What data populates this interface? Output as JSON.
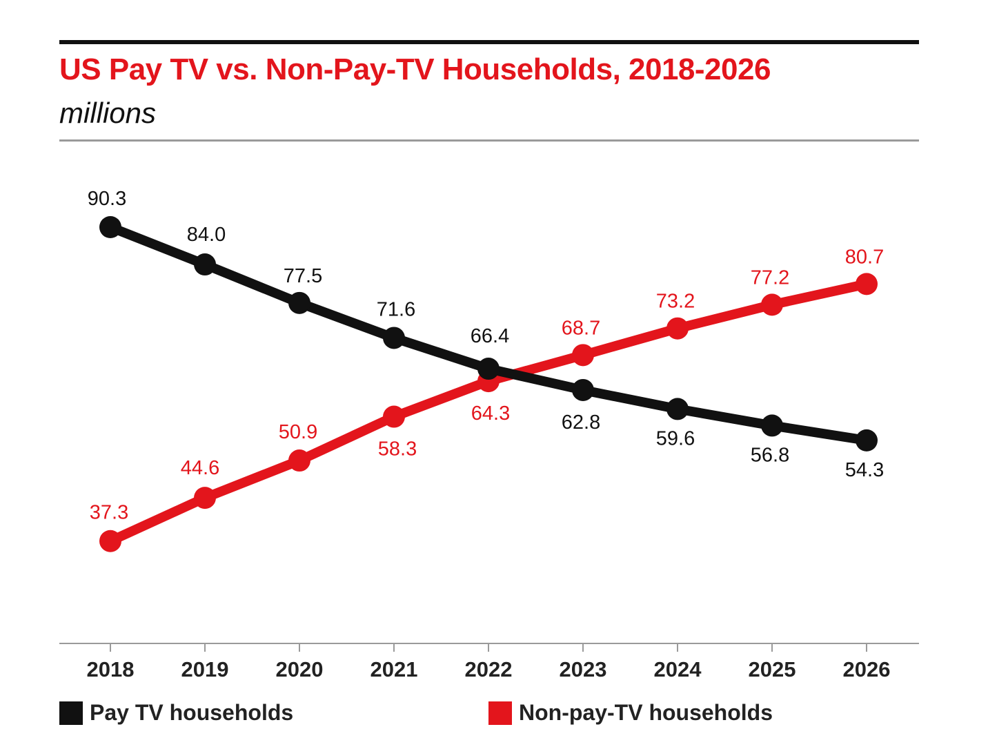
{
  "header": {
    "title": "US Pay TV vs. Non-Pay-TV Households, 2018-2026",
    "subtitle": "millions"
  },
  "colors": {
    "pay_tv": "#111111",
    "non_pay_tv": "#e3151c",
    "axis": "#9a9a9a"
  },
  "legend": [
    {
      "name": "Pay TV households",
      "color": "#111111"
    },
    {
      "name": "Non-pay-TV households",
      "color": "#e3151c"
    }
  ],
  "chart_data": {
    "type": "line",
    "title": "US Pay TV vs. Non-Pay-TV Households, 2018-2026",
    "subtitle": "millions",
    "xlabel": "",
    "ylabel": "",
    "categories": [
      "2018",
      "2019",
      "2020",
      "2021",
      "2022",
      "2023",
      "2024",
      "2025",
      "2026"
    ],
    "ylim": [
      30,
      95
    ],
    "grid": false,
    "legend_position": "bottom",
    "series": [
      {
        "name": "Pay TV households",
        "color": "#111111",
        "values": [
          90.3,
          84.0,
          77.5,
          71.6,
          66.4,
          62.8,
          59.6,
          56.8,
          54.3
        ],
        "labels": [
          "90.3",
          "84.0",
          "77.5",
          "71.6",
          "66.4",
          "62.8",
          "59.6",
          "56.8",
          "54.3"
        ]
      },
      {
        "name": "Non-pay-TV households",
        "color": "#e3151c",
        "values": [
          37.3,
          44.6,
          50.9,
          58.3,
          64.3,
          68.7,
          73.2,
          77.2,
          80.7
        ],
        "labels": [
          "37.3",
          "44.6",
          "50.9",
          "58.3",
          "64.3",
          "68.7",
          "73.2",
          "77.2",
          "80.7"
        ]
      }
    ]
  }
}
